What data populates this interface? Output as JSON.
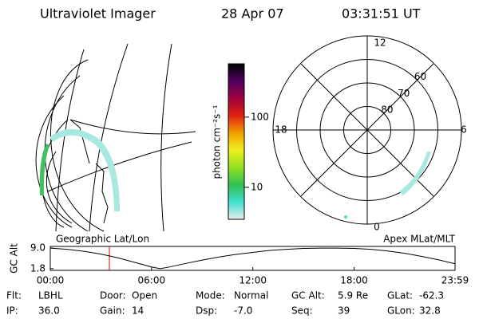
{
  "header": {
    "title": "Ultraviolet Imager",
    "date": "28 Apr 07",
    "time": "03:31:51 UT"
  },
  "colorbar": {
    "label": "photon cm⁻²s⁻¹",
    "lim": [
      3.5,
      575
    ],
    "ticks": [
      10,
      100
    ],
    "log": true,
    "colors": [
      "#e8eef0",
      "#40e0d0",
      "#30c050",
      "#90e020",
      "#f0f020",
      "#f0a000",
      "#e02010",
      "#a00040",
      "#500060",
      "#000000"
    ]
  },
  "polar": {
    "hour_labels": {
      "top": "12",
      "left": "18",
      "right": "6",
      "bottom": "0"
    },
    "rings": [
      80,
      70,
      60
    ],
    "lim": [
      50,
      90
    ]
  },
  "chart_data": {
    "type": "line",
    "title_left": "Geographic Lat/Lon",
    "title_right": "Apex MLat/MLT",
    "ylabel": "GC Alt",
    "x": [
      0,
      1,
      2,
      3,
      4,
      5,
      6,
      6.5,
      7,
      8,
      9,
      10,
      11,
      12,
      13,
      14,
      15,
      16,
      17,
      18,
      19,
      20,
      21,
      22,
      23,
      23.983
    ],
    "values": [
      9.0,
      8.6,
      7.9,
      6.9,
      5.6,
      4.0,
      2.4,
      1.8,
      2.3,
      3.6,
      4.8,
      5.9,
      6.8,
      7.5,
      8.2,
      8.6,
      8.9,
      9.0,
      9.0,
      8.9,
      8.6,
      8.0,
      7.2,
      6.1,
      4.9,
      3.5
    ],
    "color": "#000000",
    "cursor_x": 3.5,
    "cursor_color": "#cc0000",
    "xlim": [
      0,
      23.983
    ],
    "xticks": [
      {
        "value": 0,
        "label": "00:00"
      },
      {
        "value": 6,
        "label": "06:00"
      },
      {
        "value": 12,
        "label": "12:00"
      },
      {
        "value": 18,
        "label": "18:00"
      },
      {
        "value": 23.983,
        "label": "23:59"
      }
    ],
    "ylim": [
      1.2,
      9.6
    ],
    "yticks": [
      {
        "value": 9,
        "label": "9.0"
      },
      1.8
    ]
  },
  "info": [
    {
      "label": "Flt:",
      "value": "LBHL"
    },
    {
      "label": "IP:",
      "value": "36.0"
    },
    {
      "label": "Door:",
      "value": "Open"
    },
    {
      "label": "Gain:",
      "value": "14"
    },
    {
      "label": "Mode:",
      "value": "Normal"
    },
    {
      "label": "Dsp:",
      "value": "-7.0"
    },
    {
      "label": "GC Alt:",
      "value": "5.9 Re"
    },
    {
      "label": "Seq:",
      "value": "39"
    },
    {
      "label": "GLat:",
      "value": "-62.3"
    },
    {
      "label": "GLon:",
      "value": "32.8"
    }
  ]
}
